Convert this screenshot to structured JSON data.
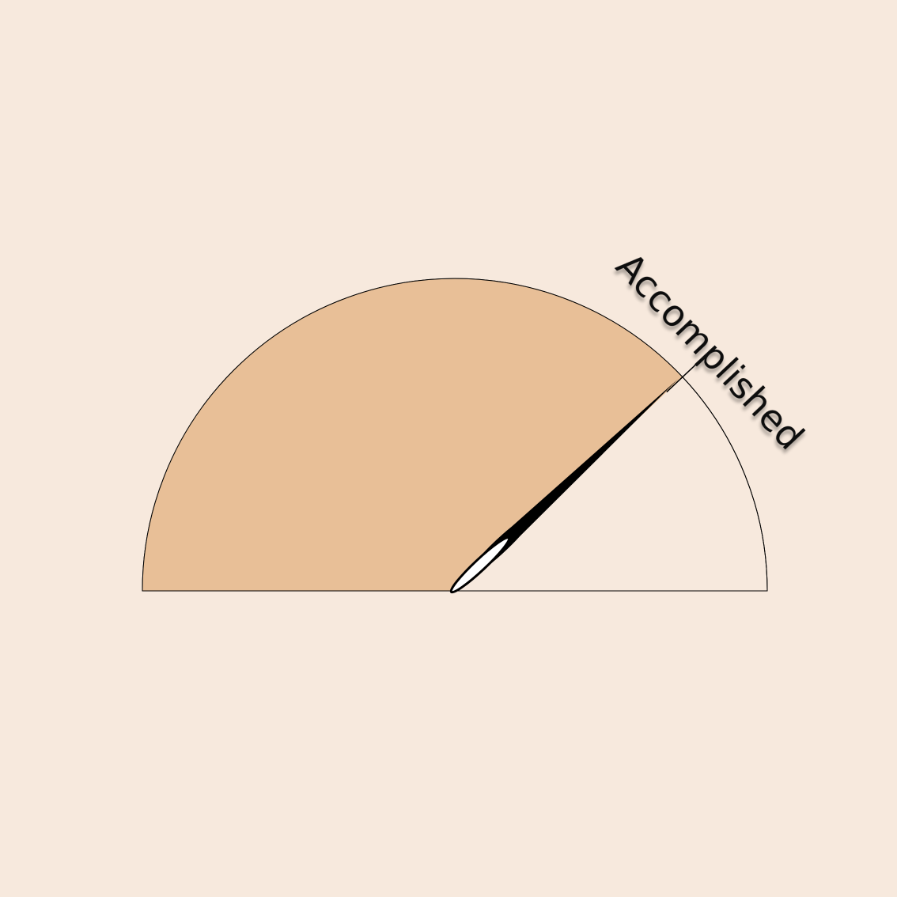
{
  "chart_data": {
    "type": "gauge",
    "label": "Accomplished",
    "value": 0.76,
    "range": [
      0,
      1
    ],
    "colors": {
      "background": "#f7e9dd",
      "filled": "#e8bf97",
      "unfilled": "#f7e9dd",
      "needle": "#000000",
      "outline": "#000000"
    }
  }
}
